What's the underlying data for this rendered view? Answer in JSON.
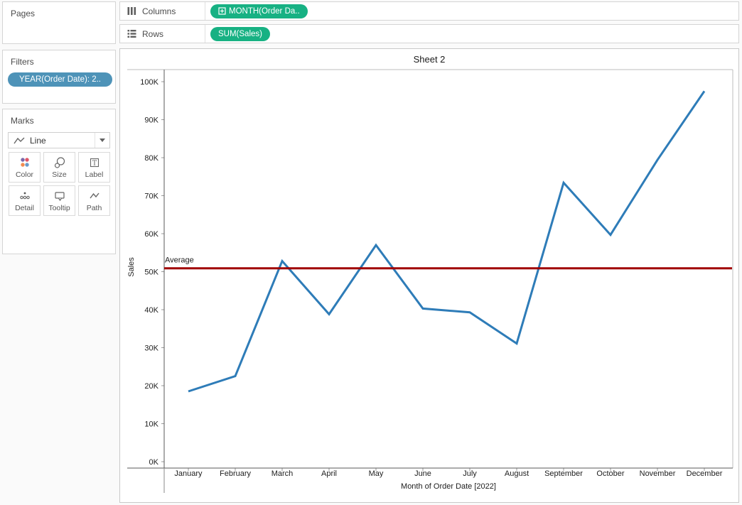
{
  "sidebar": {
    "pages": {
      "title": "Pages"
    },
    "filters": {
      "title": "Filters",
      "pill": "YEAR(Order Date): 2.."
    },
    "marks": {
      "title": "Marks",
      "mark_type": "Line",
      "buttons": [
        {
          "label": "Color"
        },
        {
          "label": "Size"
        },
        {
          "label": "Label"
        },
        {
          "label": "Detail"
        },
        {
          "label": "Tooltip"
        },
        {
          "label": "Path"
        }
      ]
    }
  },
  "shelves": {
    "columns": {
      "label": "Columns",
      "pill": "MONTH(Order Da.."
    },
    "rows": {
      "label": "Rows",
      "pill": "SUM(Sales)"
    }
  },
  "chart_data": {
    "type": "line",
    "title": "Sheet 2",
    "xlabel": "Month of Order Date [2022]",
    "ylabel": "Sales",
    "categories": [
      "January",
      "February",
      "March",
      "April",
      "May",
      "June",
      "July",
      "August",
      "September",
      "October",
      "November",
      "December"
    ],
    "series": [
      {
        "name": "SUM(Sales)",
        "values_k": [
          18.5,
          22.5,
          52.8,
          38.8,
          57.0,
          40.3,
          39.3,
          31.1,
          73.4,
          59.7,
          79.4,
          97.5
        ]
      }
    ],
    "ylim_k": [
      0,
      100
    ],
    "ytick_step_k": 10,
    "ytick_suffix": "K",
    "grid": "off",
    "reference_line": {
      "label": "Average",
      "value_k": 50.9
    }
  },
  "colors": {
    "pill_green": "#17B183",
    "pill_blue": "#4E93B8",
    "line_blue": "#2E7CB8",
    "reference_red": "#A00000",
    "color_icon_dots": [
      "#7B66A8",
      "#E05667",
      "#F28C50",
      "#6A9AC9"
    ]
  }
}
